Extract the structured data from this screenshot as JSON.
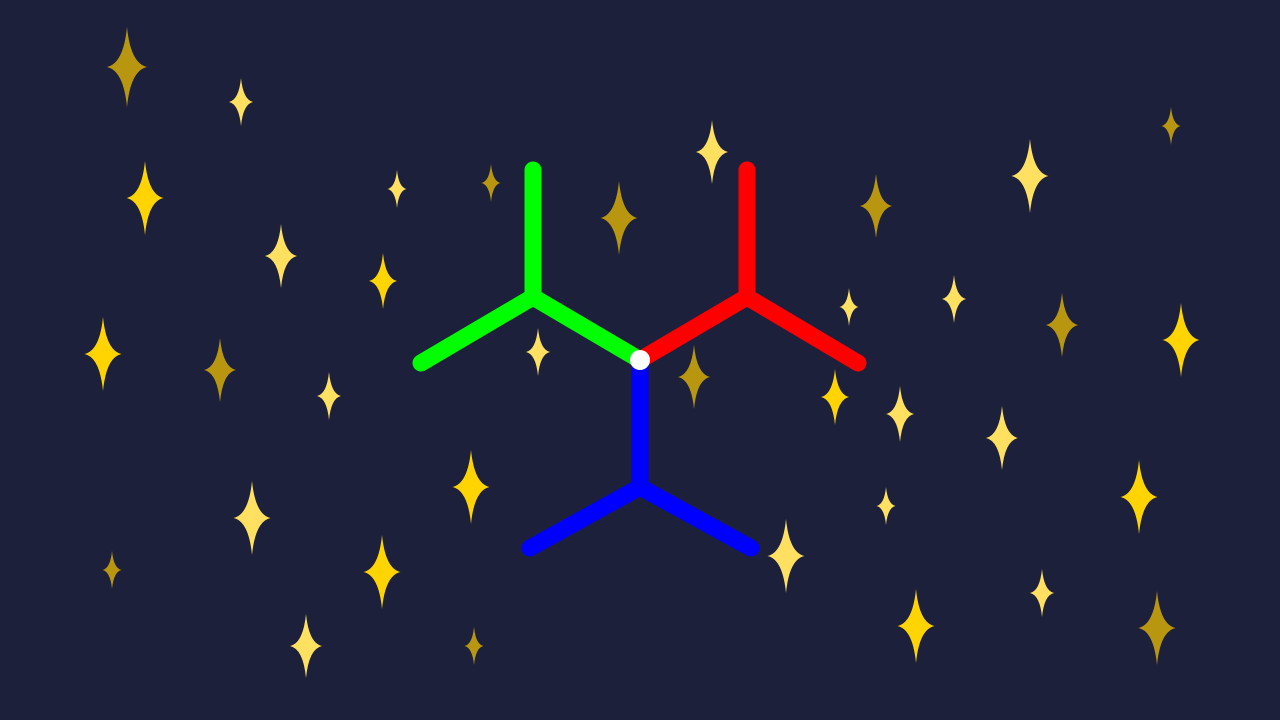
{
  "colors": {
    "background": "#1c203b",
    "star_bright": "#ffd400",
    "star_light": "#ffe060",
    "star_dim": "#b8960f",
    "arm_green": "#00ff00",
    "arm_red": "#ff0000",
    "arm_blue": "#0000ff",
    "center_dot": "#ffffff"
  },
  "icons": {
    "star": "four-point-sparkle-icon",
    "figure": "three-color-y-branch-icon"
  }
}
